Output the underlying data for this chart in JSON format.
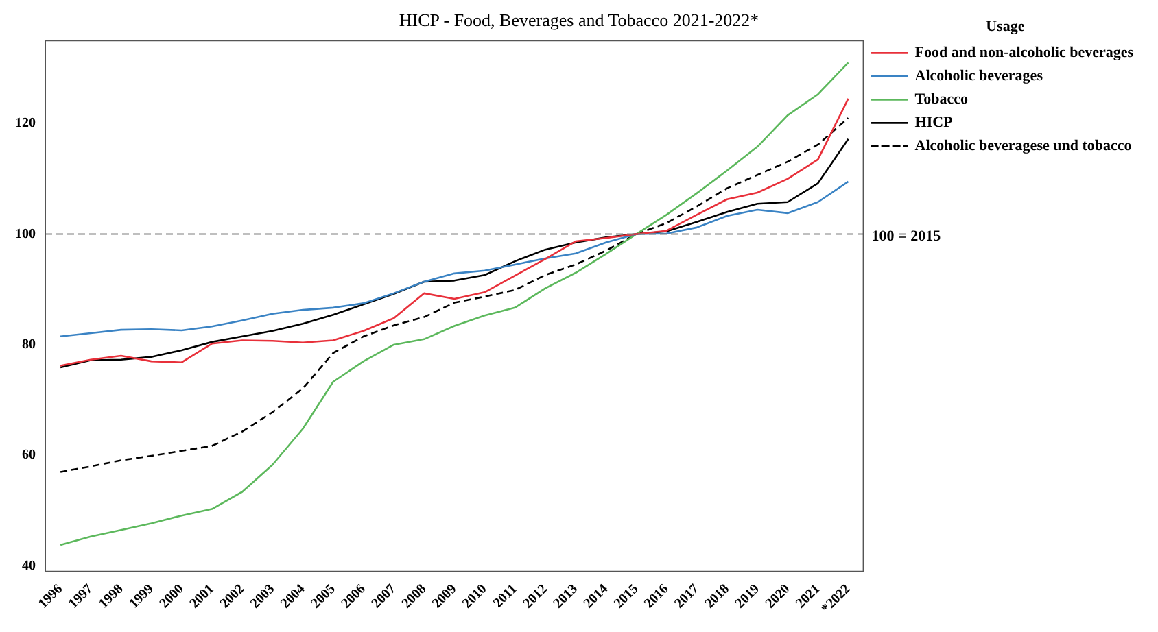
{
  "chart_data": {
    "type": "line",
    "title": "HICP - Food, Beverages and Tobacco 2021-2022*",
    "legend_title": "Usage",
    "legend": "top right",
    "grid": false,
    "marker": "none",
    "categories": [
      "1996",
      "1997",
      "1998",
      "1999",
      "2000",
      "2001",
      "2002",
      "2003",
      "2004",
      "2005",
      "2006",
      "2007",
      "2008",
      "2009",
      "2010",
      "2011",
      "2012",
      "2013",
      "2014",
      "2015",
      "2016",
      "2017",
      "2018",
      "2019",
      "2020",
      "2021",
      "*2022"
    ],
    "ylim": [
      39,
      135
    ],
    "yticks": [
      40,
      60,
      80,
      100,
      120
    ],
    "ref_lines": [
      {
        "axis": "y",
        "value": 100,
        "label": "100 = 2015",
        "color": "#808080",
        "line_style": "dashed"
      }
    ],
    "series": [
      {
        "name": "Food and non-alcoholic beverages",
        "color": "#e8303a",
        "line_style": "solid",
        "values": [
          76.2,
          77.3,
          78,
          77,
          76.8,
          80.2,
          80.8,
          80.7,
          80.4,
          80.8,
          82.5,
          84.8,
          89.3,
          88.3,
          89.5,
          92.5,
          95.5,
          98.7,
          99.3,
          100,
          100.6,
          103.5,
          106.3,
          107.5,
          110,
          113.5,
          124.5
        ]
      },
      {
        "name": "Alcoholic beverages",
        "color": "#3a83c4",
        "line_style": "solid",
        "values": [
          81.5,
          82.1,
          82.7,
          82.8,
          82.6,
          83.3,
          84.4,
          85.6,
          86.3,
          86.7,
          87.5,
          89.3,
          91.4,
          92.9,
          93.4,
          94.5,
          95.6,
          96.5,
          98.5,
          100,
          100.1,
          101.2,
          103.3,
          104.4,
          103.8,
          105.8,
          109.5
        ]
      },
      {
        "name": "Tobacco",
        "color": "#5cb85c",
        "line_style": "solid",
        "values": [
          43.8,
          45.3,
          46.5,
          47.7,
          49.1,
          50.3,
          53.4,
          58.3,
          64.8,
          73.3,
          77,
          80,
          81,
          83.4,
          85.3,
          86.7,
          90.2,
          93,
          96.4,
          100,
          103.5,
          107.4,
          111.5,
          115.8,
          121.5,
          125.3,
          131
        ]
      },
      {
        "name": "HICP",
        "color": "#000000",
        "line_style": "solid",
        "values": [
          75.9,
          77.2,
          77.3,
          77.8,
          79,
          80.5,
          81.5,
          82.5,
          83.8,
          85.4,
          87.3,
          89.2,
          91.4,
          91.6,
          92.6,
          95.1,
          97.2,
          98.5,
          99.4,
          100,
          100.5,
          102.2,
          104,
          105.5,
          105.8,
          109.2,
          117.2
        ]
      },
      {
        "name": "Alcoholic beveragese und tobacco",
        "color": "#000000",
        "line_style": "dashed",
        "values": [
          57,
          58,
          59.1,
          59.9,
          60.8,
          61.7,
          64.3,
          67.8,
          72.1,
          78.5,
          81.5,
          83.5,
          85,
          87.6,
          88.7,
          89.9,
          92.6,
          94.5,
          97,
          100,
          102,
          105,
          108.3,
          110.7,
          113.1,
          116.2,
          121
        ]
      }
    ]
  }
}
